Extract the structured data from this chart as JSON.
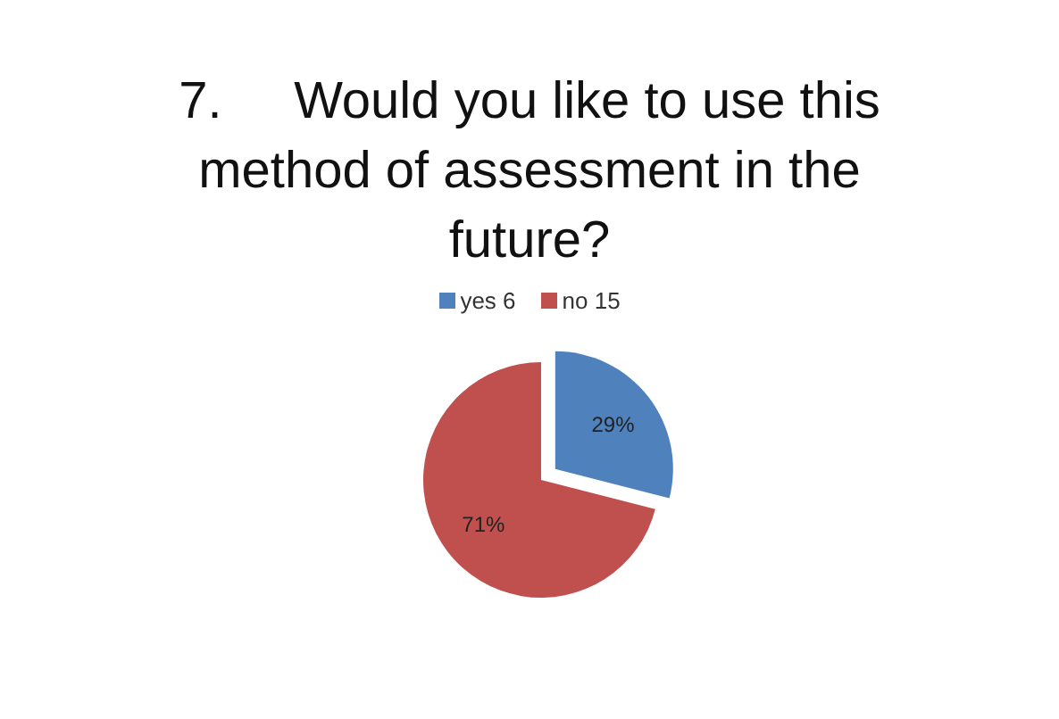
{
  "chart_data": {
    "type": "pie",
    "title": "7.     Would you like to use this method of assessment in the future?",
    "categories": [
      "yes 6",
      "no 15"
    ],
    "values": [
      29,
      71
    ],
    "value_labels": [
      "29%",
      "71%"
    ],
    "colors": [
      "#4f81bd",
      "#c0504d"
    ],
    "legend": "top"
  }
}
